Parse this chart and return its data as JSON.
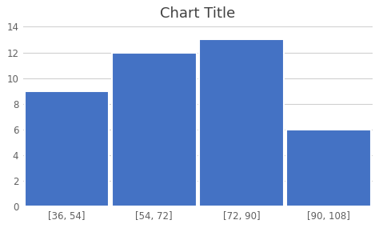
{
  "title": "Chart Title",
  "categories": [
    "[36, 54]",
    "[54, 72]",
    "[72, 90]",
    "[90, 108]"
  ],
  "values": [
    9,
    12,
    13,
    6
  ],
  "bar_color": "#4472C4",
  "bar_edgecolor": "#ffffff",
  "bar_linewidth": 1.5,
  "ylim": [
    0,
    14
  ],
  "yticks": [
    0,
    2,
    4,
    6,
    8,
    10,
    12,
    14
  ],
  "title_fontsize": 13,
  "tick_fontsize": 8.5,
  "background_color": "#ffffff",
  "grid_color": "#d0d0d0",
  "title_color": "#404040",
  "tick_color": "#606060"
}
